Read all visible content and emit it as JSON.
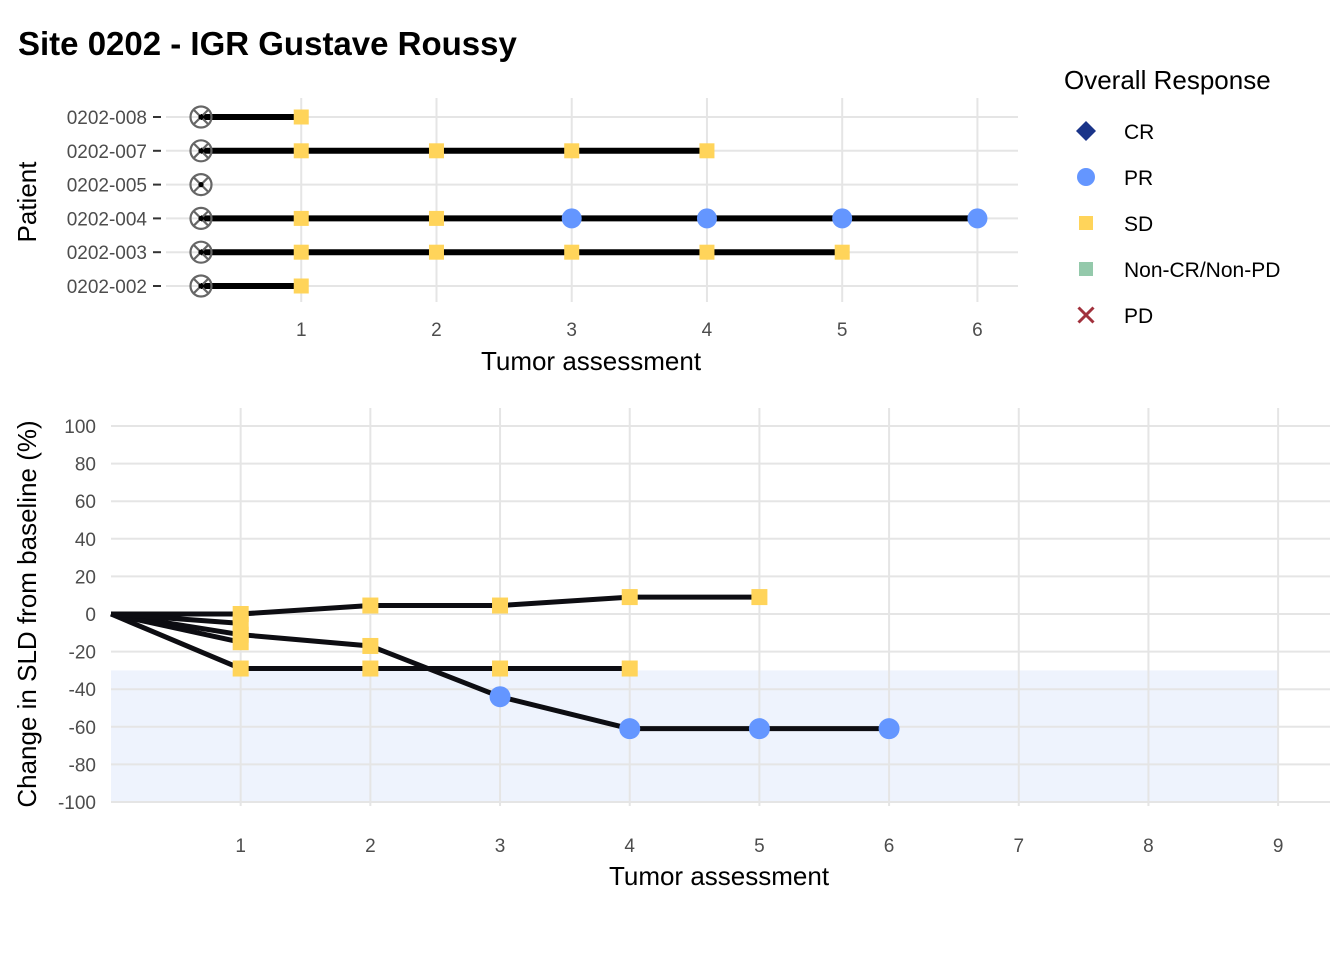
{
  "title": "Site 0202 - IGR Gustave Roussy",
  "legend": {
    "title": "Overall Response",
    "items": [
      {
        "label": "CR",
        "shape": "diamond",
        "color": "#1a3489"
      },
      {
        "label": "PR",
        "shape": "circle",
        "color": "#6496ff"
      },
      {
        "label": "SD",
        "shape": "square",
        "color": "#ffd45a"
      },
      {
        "label": "Non-CR/Non-PD",
        "shape": "square",
        "color": "#94c9ab"
      },
      {
        "label": "PD",
        "shape": "cross",
        "color": "#a1313c"
      }
    ]
  },
  "chart_data": [
    {
      "type": "scatter",
      "subtype": "swimmer",
      "xlabel": "Tumor assessment",
      "ylabel": "Patient",
      "xlim": [
        0,
        6.3
      ],
      "xticks": [
        1,
        2,
        3,
        4,
        5,
        6
      ],
      "patients": [
        "0202-002",
        "0202-003",
        "0202-004",
        "0202-005",
        "0202-007",
        "0202-008"
      ],
      "baseline_marker": "circle-x",
      "lanes": [
        {
          "patient": "0202-008",
          "end": 1,
          "assessments": [
            {
              "x": 1,
              "response": "SD"
            }
          ]
        },
        {
          "patient": "0202-007",
          "end": 4,
          "assessments": [
            {
              "x": 1,
              "response": "SD"
            },
            {
              "x": 2,
              "response": "SD"
            },
            {
              "x": 3,
              "response": "SD"
            },
            {
              "x": 4,
              "response": "SD"
            }
          ]
        },
        {
          "patient": "0202-005",
          "end": 0,
          "assessments": []
        },
        {
          "patient": "0202-004",
          "end": 6,
          "assessments": [
            {
              "x": 1,
              "response": "SD"
            },
            {
              "x": 2,
              "response": "SD"
            },
            {
              "x": 3,
              "response": "PR"
            },
            {
              "x": 4,
              "response": "PR"
            },
            {
              "x": 5,
              "response": "PR"
            },
            {
              "x": 6,
              "response": "PR"
            }
          ]
        },
        {
          "patient": "0202-003",
          "end": 5,
          "assessments": [
            {
              "x": 1,
              "response": "SD"
            },
            {
              "x": 2,
              "response": "SD"
            },
            {
              "x": 3,
              "response": "SD"
            },
            {
              "x": 4,
              "response": "SD"
            },
            {
              "x": 5,
              "response": "SD"
            }
          ]
        },
        {
          "patient": "0202-002",
          "end": 1,
          "assessments": [
            {
              "x": 1,
              "response": "SD"
            }
          ]
        }
      ],
      "grid": true
    },
    {
      "type": "line",
      "xlabel": "Tumor assessment",
      "ylabel": "Change in SLD from baseline (%)",
      "xlim": [
        0,
        9.4
      ],
      "ylim": [
        -100,
        100
      ],
      "xticks": [
        1,
        2,
        3,
        4,
        5,
        6,
        7,
        8,
        9
      ],
      "yticks": [
        -100,
        -80,
        -60,
        -40,
        -20,
        0,
        20,
        40,
        60,
        80,
        100
      ],
      "response_band": {
        "from_x": 0,
        "to_x": 9,
        "from_y": -100,
        "to_y": -30,
        "color": "#eef3fd"
      },
      "series": [
        {
          "points": [
            {
              "x": 0,
              "y": 0
            },
            {
              "x": 1,
              "y": 0,
              "response": "SD"
            },
            {
              "x": 2,
              "y": 4.5,
              "response": "SD"
            },
            {
              "x": 3,
              "y": 4.5,
              "response": "SD"
            },
            {
              "x": 4,
              "y": 9,
              "response": "SD"
            },
            {
              "x": 5,
              "y": 9,
              "response": "SD"
            }
          ]
        },
        {
          "points": [
            {
              "x": 0,
              "y": 0
            },
            {
              "x": 1,
              "y": -11,
              "response": "SD"
            },
            {
              "x": 2,
              "y": -17,
              "response": "SD"
            },
            {
              "x": 3,
              "y": -44,
              "response": "PR"
            },
            {
              "x": 4,
              "y": -61,
              "response": "PR"
            },
            {
              "x": 5,
              "y": -61,
              "response": "PR"
            },
            {
              "x": 6,
              "y": -61,
              "response": "PR"
            }
          ]
        },
        {
          "points": [
            {
              "x": 0,
              "y": 0
            },
            {
              "x": 1,
              "y": -29,
              "response": "SD"
            },
            {
              "x": 2,
              "y": -29,
              "response": "SD"
            },
            {
              "x": 3,
              "y": -29,
              "response": "SD"
            },
            {
              "x": 4,
              "y": -29,
              "response": "SD"
            }
          ]
        },
        {
          "points": [
            {
              "x": 0,
              "y": 0
            },
            {
              "x": 1,
              "y": -15,
              "response": "SD"
            }
          ]
        },
        {
          "points": [
            {
              "x": 0,
              "y": 0
            },
            {
              "x": 1,
              "y": -5,
              "response": "SD"
            }
          ]
        }
      ],
      "grid": true
    }
  ]
}
